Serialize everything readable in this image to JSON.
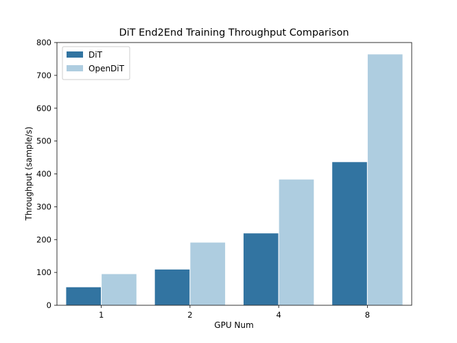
{
  "chart_data": {
    "type": "bar",
    "title": "DiT End2End Training Throughput Comparison",
    "xlabel": "GPU Num",
    "ylabel": "Throughput (sample/s)",
    "categories": [
      "1",
      "2",
      "4",
      "8"
    ],
    "series": [
      {
        "name": "DiT",
        "values": [
          56,
          110,
          220,
          437
        ],
        "color": "#3274a1"
      },
      {
        "name": "OpenDiT",
        "values": [
          96,
          192,
          384,
          765
        ],
        "color": "#aecde0"
      }
    ],
    "ylim": [
      0,
      800
    ],
    "yticks": [
      0,
      100,
      200,
      300,
      400,
      500,
      600,
      700,
      800
    ],
    "grid": false,
    "legend_position": "top-left"
  }
}
